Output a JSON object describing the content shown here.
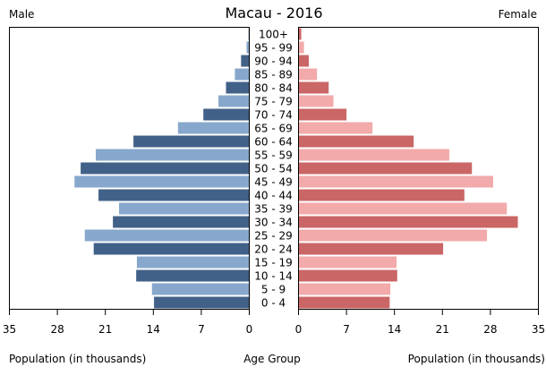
{
  "chart_data": {
    "type": "bar",
    "subtype": "population-pyramid",
    "title": "Macau - 2016",
    "left_label": "Male",
    "right_label": "Female",
    "xlabel_left": "Population (in thousands)",
    "xlabel_center": "Age Group",
    "xlabel_right": "Population (in thousands)",
    "xlim": [
      0,
      35
    ],
    "xticks": [
      "35",
      "28",
      "21",
      "14",
      "7",
      "0"
    ],
    "xticks_right": [
      "0",
      "7",
      "14",
      "21",
      "28",
      "35"
    ],
    "categories": [
      "0 - 4",
      "5 - 9",
      "10 - 14",
      "15 - 19",
      "20 - 24",
      "25 - 29",
      "30 - 34",
      "35 - 39",
      "40 - 44",
      "45 - 49",
      "50 - 54",
      "55 - 59",
      "60 - 64",
      "65 - 69",
      "70 - 74",
      "75 - 79",
      "80 - 84",
      "85 - 89",
      "90 - 94",
      "95 - 99",
      "100+"
    ],
    "series": [
      {
        "name": "Male",
        "values": [
          13.9,
          14.2,
          16.5,
          16.4,
          22.7,
          24.0,
          19.9,
          19.0,
          22.0,
          25.5,
          24.6,
          22.4,
          16.9,
          10.4,
          6.7,
          4.5,
          3.4,
          2.1,
          1.2,
          0.4,
          0.1
        ],
        "colors": [
          "#426188",
          "#87a8cc"
        ]
      },
      {
        "name": "Female",
        "values": [
          13.3,
          13.4,
          14.4,
          14.3,
          21.1,
          27.5,
          32.0,
          30.4,
          24.2,
          28.4,
          25.3,
          22.0,
          16.8,
          10.8,
          7.0,
          5.1,
          4.4,
          2.7,
          1.5,
          0.8,
          0.4
        ],
        "colors": [
          "#cb6666",
          "#f2aaaa"
        ]
      }
    ]
  }
}
